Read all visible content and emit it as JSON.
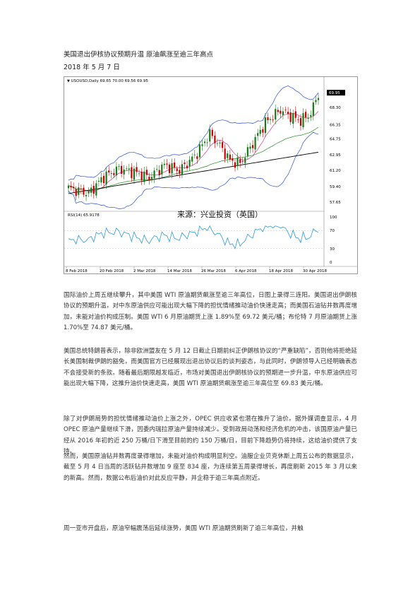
{
  "title": "美国退出伊核协议预期升温  原油飙涨至逾三年高点",
  "date": "2018 年 5 月 7 日",
  "chart": {
    "header": "USOUSD,Daily  69.65 70.00 69.56 69.95",
    "last_price": "69.95",
    "source": "来源：兴业投资（英国）",
    "rsi_label": "RSI(14) 65.9178",
    "price_ticks": [
      "68.30",
      "66.35",
      "64.75",
      "62.95",
      "61.20",
      "59.40",
      "57.65"
    ],
    "rsi_ticks": [
      "100",
      "70",
      "30",
      "0"
    ],
    "date_ticks": [
      "8 Feb 2018",
      "20 Feb 2018",
      "2 Mar 2018",
      "14 Mar 2018",
      "26 Mar 2018",
      "6 Apr 2018",
      "18 Apr 2018",
      "30 Apr 2018"
    ],
    "colors": {
      "up": "#1a7a1a",
      "down": "#cc0000",
      "bollinger": "#2b4fd6",
      "ma_short": "#d63384",
      "ma_mid": "#1f8a1f",
      "ma_long": "#000000",
      "rsi": "#2b9bd6",
      "highlight": "#00aa00"
    }
  },
  "chart_data": {
    "type": "candlestick",
    "series": "USOUSD Daily",
    "dates": [
      "8 Feb 2018",
      "20 Feb 2018",
      "2 Mar 2018",
      "14 Mar 2018",
      "26 Mar 2018",
      "6 Apr 2018",
      "18 Apr 2018",
      "30 Apr 2018"
    ],
    "close_approx": [
      59.2,
      61.6,
      61.0,
      61.2,
      65.5,
      62.0,
      68.3,
      67.3
    ],
    "last_close": 69.95,
    "rsi_last": 65.9178,
    "ylim": [
      57.65,
      69.95
    ]
  },
  "paragraphs": [
    "国际油价上周五继续攀升，其中美国 WTI 原油期货飙涨至逾三年高位，日图上录得三连阳。美国退出伊朗核协议的预期升温，对中东原油供应可能出现大幅下降的担忧情绪推动油价快速走高；而美国石油钻井数再度增加，未能对油价构成压制。美国 WTI 6 月原油期货上涨 1.89%至 69.72 美元/桶；布伦特 7 月原油期货上涨 1.70%至 74.87 美元/桶。",
    "美国总统特朗普表示，除非欧洲盟友在 5 月 12 日截止日期前纠正伊朗核协议的“严重缺陷”，否则他将拒绝延长美国制裁伊朗的豁免，而美国官方已经展现出退出协议后的谈判姿态，与此同时，伊朗领导人已经明确表态不会接受新的条款。随着最后期限越发临近，市场对美国退出伊朗核协议的预期进一步升温，中东原油供应可能出现大幅下降，这推升油价快速走高，美国 WTI 原油期货飙涨至逾三年高位至 69.83 美元/桶。",
    "除了对伊朗局势的担忧情绪推动油价上涨之外，OPEC 供应收紧也潜在推升了油价。据外媒调查显示，4 月 OPEC 原油产量继续下滑，因委内瑞拉原油产量持续减少。受到政局动荡和经济危机的冲击，该国原油产量已经从 2016 年初的近 250 万桶/日下滑至目前的约 150 万桶/日，目前下降趋势仍将持续，这给油价提供了支持。",
    "然而，美国原油钻井数再度录得增加，未能对油价构成明显利空。油服企业贝克休斯上周五公布的数据显示，截至 5 月 4 日当周的活跃钻井数增加 9 座至 834 座，为连续第五周录得增长，再度刷新 2015 年 3 月以来的新高。然而，数据公布后油价对此反应平静，并企稳于逾三年高点附近。",
    "周一亚市开盘后，原油窄幅震荡后延续涨势，美国 WTI 原油期货刷新了逾三年高位，并触"
  ]
}
